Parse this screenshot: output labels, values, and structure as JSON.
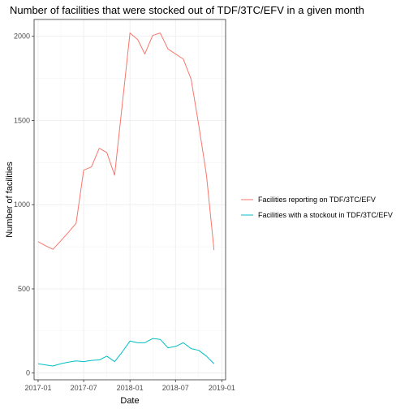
{
  "chart_data": {
    "type": "line",
    "title": "Number of facilities that were stocked out of TDF/3TC/EFV in a given month",
    "xlabel": "Date",
    "ylabel": "Number of facilities",
    "x_ticks": [
      "2017-01",
      "2017-07",
      "2018-01",
      "2018-07",
      "2019-01"
    ],
    "y_ticks": [
      "0",
      "500",
      "1000",
      "1500",
      "2000"
    ],
    "ylim": [
      -40,
      2100
    ],
    "xlim": [
      "2016-12-16",
      "2019-01-16"
    ],
    "grid": true,
    "legend_position": "right",
    "x": [
      "2017-01",
      "2017-02",
      "2017-03",
      "2017-04",
      "2017-05",
      "2017-06",
      "2017-07",
      "2017-08",
      "2017-09",
      "2017-10",
      "2017-11",
      "2017-12",
      "2018-01",
      "2018-02",
      "2018-03",
      "2018-04",
      "2018-05",
      "2018-06",
      "2018-07",
      "2018-08",
      "2018-09",
      "2018-10",
      "2018-11",
      "2018-12"
    ],
    "series": [
      {
        "name": "Facilities reporting on TDF/3TC/EFV",
        "color": "#F8766D",
        "values": [
          780,
          755,
          735,
          785,
          835,
          890,
          1205,
          1225,
          1335,
          1310,
          1175,
          1590,
          2020,
          1980,
          1895,
          2005,
          2020,
          1925,
          1895,
          1865,
          1745,
          1475,
          1175,
          730
        ]
      },
      {
        "name": "Facilities with a stockout in TDF/3TC/EFV",
        "color": "#00BFC4",
        "values": [
          55,
          48,
          42,
          55,
          65,
          72,
          68,
          75,
          78,
          100,
          68,
          125,
          190,
          180,
          180,
          205,
          200,
          150,
          158,
          180,
          145,
          135,
          100,
          55
        ]
      }
    ]
  }
}
